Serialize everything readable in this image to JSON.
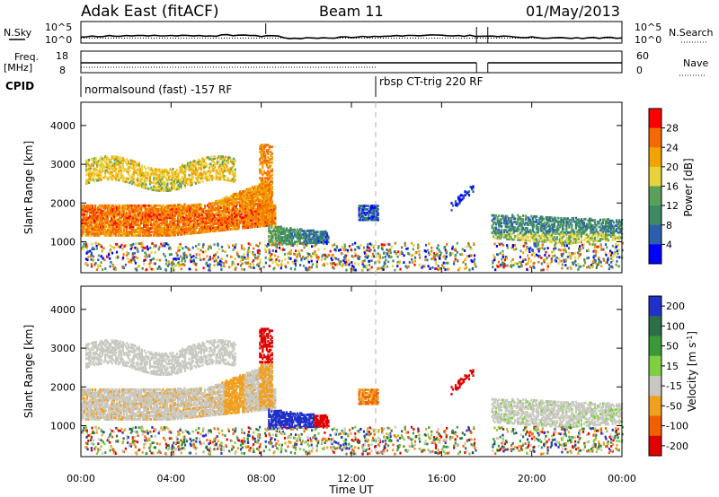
{
  "header": {
    "title": "Adak East (fitACF)",
    "beam": "Beam 11",
    "date": "01/May/2013"
  },
  "nsky_panel": {
    "left_label": "N.Sky",
    "right_label": "N.Search",
    "ticks_left": [
      "10^5",
      "10^0"
    ],
    "ticks_right": [
      "10^5",
      "10^0"
    ]
  },
  "freq_panel": {
    "left_label_1": "Freq.",
    "left_label_2": "[MHz]",
    "right_label": "Nave",
    "ticks_left": [
      "18",
      "8"
    ],
    "ticks_right": [
      "60",
      "0"
    ]
  },
  "cpid_panel": {
    "label": "CPID",
    "programs": [
      {
        "name": "normalsound (fast) -157 RF",
        "start_hour": 0
      },
      {
        "name": "rbsp CT-trig 220 RF",
        "start_hour": 13.1
      }
    ]
  },
  "colors": {
    "power_scale": [
      "#0000ff",
      "#2b5fae",
      "#3b8a65",
      "#5aa05a",
      "#e8d23a",
      "#f2a300",
      "#f46a00",
      "#ff0000"
    ],
    "velocity_scale": [
      "#2030c8",
      "#2c6e46",
      "#3a9a3a",
      "#7fd040",
      "#c8c8c0",
      "#f0a020",
      "#f06000",
      "#e00000"
    ]
  },
  "chart_data": [
    {
      "type": "heatmap",
      "panel": "power",
      "ylabel": "Slant Range [km]",
      "yticks": [
        1000,
        2000,
        3000,
        4000
      ],
      "ylim": [
        200,
        4600
      ],
      "xlim": [
        0,
        24
      ],
      "colorbar": {
        "label": "Power [dB]",
        "ticks": [
          4,
          8,
          12,
          16,
          20,
          24,
          28
        ],
        "range": [
          0,
          32
        ]
      },
      "features": [
        {
          "name": "main band",
          "hours": [
            0,
            8.6
          ],
          "range_km": [
            1200,
            2000
          ],
          "level_db": 26
        },
        {
          "name": "upper band",
          "hours": [
            0.8,
            6.6
          ],
          "range_km": [
            2400,
            3100
          ],
          "level_db": 20
        },
        {
          "name": "decay trail",
          "hours": [
            8.3,
            11.0
          ],
          "range_km": [
            1000,
            1500
          ],
          "level_db": 10
        },
        {
          "name": "echo cluster",
          "hours": [
            12.3,
            13.2
          ],
          "range_km": [
            1550,
            1950
          ],
          "level_db": 5
        },
        {
          "name": "late band",
          "hours": [
            18.3,
            24
          ],
          "range_km": [
            950,
            1700
          ],
          "level_db": 9
        }
      ]
    },
    {
      "type": "heatmap",
      "panel": "velocity",
      "ylabel": "Slant Range [km]",
      "yticks": [
        1000,
        2000,
        3000,
        4000
      ],
      "ylim": [
        200,
        4600
      ],
      "xlim": [
        0,
        24
      ],
      "xticks": [
        "00:00",
        "04:00",
        "08:00",
        "12:00",
        "16:00",
        "20:00",
        "00:00"
      ],
      "xlabel": "Time UT",
      "colorbar": {
        "label": "Velocity [m s^-1]",
        "ticks": [
          "200",
          "100",
          "50",
          "15",
          "-15",
          "-50",
          "-100",
          "-200"
        ],
        "range": [
          -250,
          250
        ]
      }
    }
  ]
}
